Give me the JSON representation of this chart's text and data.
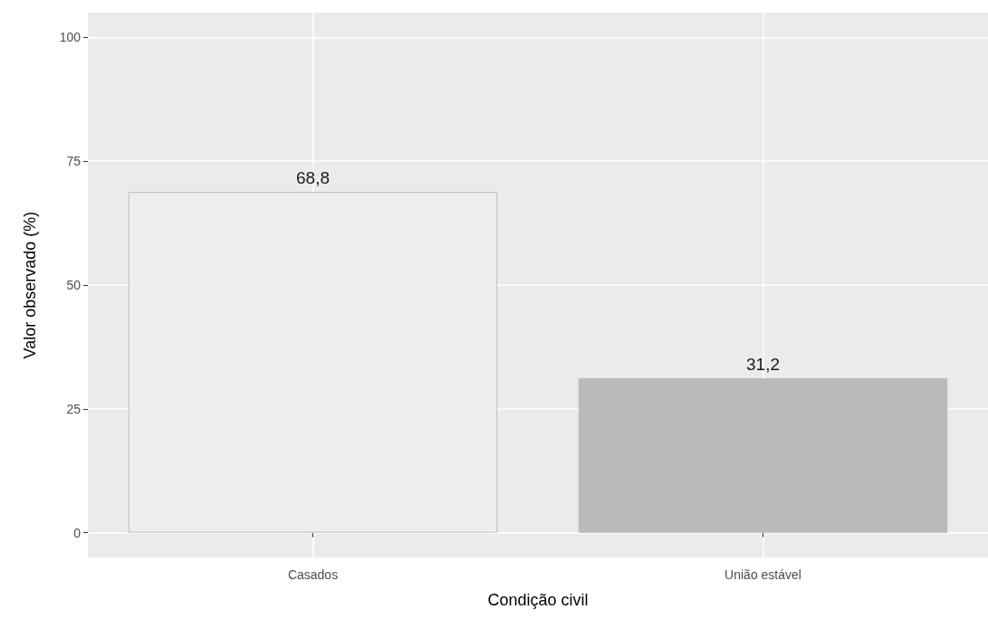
{
  "chart_data": {
    "type": "bar",
    "xlabel": "Condição civil",
    "ylabel": "Valor observado (%)",
    "categories": [
      "Casados",
      "União estável"
    ],
    "values": [
      68.8,
      31.2
    ],
    "colors": [
      "#eeeeee",
      "#bababa"
    ],
    "value_labels": [
      "68,8",
      "31,2"
    ],
    "ylim": [
      -5,
      105
    ],
    "yticks": [
      0,
      25,
      50,
      75,
      100
    ],
    "grid": true
  }
}
